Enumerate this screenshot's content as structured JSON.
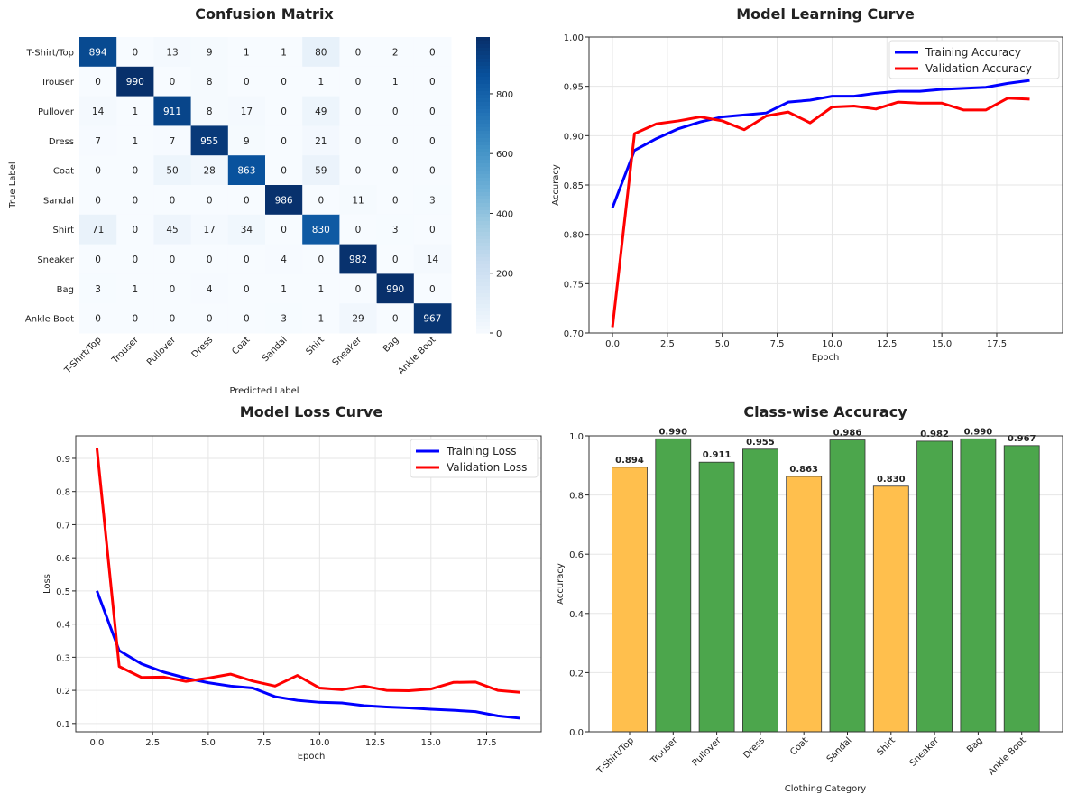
{
  "chart_data": [
    {
      "type": "heatmap",
      "title": "Confusion Matrix",
      "xlabel": "Predicted Label",
      "ylabel": "True Label",
      "labels": [
        "T-Shirt/Top",
        "Trouser",
        "Pullover",
        "Dress",
        "Coat",
        "Sandal",
        "Shirt",
        "Sneaker",
        "Bag",
        "Ankle Boot"
      ],
      "matrix": [
        [
          894,
          0,
          13,
          9,
          1,
          1,
          80,
          0,
          2,
          0
        ],
        [
          0,
          990,
          0,
          8,
          0,
          0,
          1,
          0,
          1,
          0
        ],
        [
          14,
          1,
          911,
          8,
          17,
          0,
          49,
          0,
          0,
          0
        ],
        [
          7,
          1,
          7,
          955,
          9,
          0,
          21,
          0,
          0,
          0
        ],
        [
          0,
          0,
          50,
          28,
          863,
          0,
          59,
          0,
          0,
          0
        ],
        [
          0,
          0,
          0,
          0,
          0,
          986,
          0,
          11,
          0,
          3
        ],
        [
          71,
          0,
          45,
          17,
          34,
          0,
          830,
          0,
          3,
          0
        ],
        [
          0,
          0,
          0,
          0,
          0,
          4,
          0,
          982,
          0,
          14
        ],
        [
          3,
          1,
          0,
          4,
          0,
          1,
          1,
          0,
          990,
          0
        ],
        [
          0,
          0,
          0,
          0,
          0,
          3,
          1,
          29,
          0,
          967
        ]
      ],
      "colormap": "Blues",
      "colorbar_ticks": [
        0,
        200,
        400,
        600,
        800
      ],
      "vmin": 0,
      "vmax": 990
    },
    {
      "type": "line",
      "title": "Model Learning Curve",
      "xlabel": "Epoch",
      "ylabel": "Accuracy",
      "x": [
        0,
        1,
        2,
        3,
        4,
        5,
        6,
        7,
        8,
        9,
        10,
        11,
        12,
        13,
        14,
        15,
        16,
        17,
        18,
        19
      ],
      "xlim": [
        -1.07,
        20.5
      ],
      "ylim": [
        0.7,
        1.0
      ],
      "xticks": [
        "0.0",
        "2.5",
        "5.0",
        "7.5",
        "10.0",
        "12.5",
        "15.0",
        "17.5"
      ],
      "yticks": [
        "0.70",
        "0.75",
        "0.80",
        "0.85",
        "0.90",
        "0.95",
        "1.00"
      ],
      "grid": true,
      "legend": "top-right",
      "series": [
        {
          "name": "Training Accuracy",
          "color": "#0000ff",
          "values": [
            0.827,
            0.885,
            0.897,
            0.907,
            0.914,
            0.919,
            0.921,
            0.923,
            0.934,
            0.936,
            0.94,
            0.94,
            0.943,
            0.945,
            0.945,
            0.947,
            0.948,
            0.949,
            0.953,
            0.956
          ]
        },
        {
          "name": "Validation Accuracy",
          "color": "#ff0000",
          "values": [
            0.706,
            0.902,
            0.912,
            0.915,
            0.919,
            0.915,
            0.906,
            0.92,
            0.924,
            0.913,
            0.929,
            0.93,
            0.927,
            0.934,
            0.933,
            0.933,
            0.926,
            0.926,
            0.938,
            0.937
          ]
        }
      ]
    },
    {
      "type": "line",
      "title": "Model Loss Curve",
      "xlabel": "Epoch",
      "ylabel": "Loss",
      "x": [
        0,
        1,
        2,
        3,
        4,
        5,
        6,
        7,
        8,
        9,
        10,
        11,
        12,
        13,
        14,
        15,
        16,
        17,
        18,
        19
      ],
      "xlim": [
        -0.95,
        19.95
      ],
      "ylim": [
        0.075,
        0.968
      ],
      "xticks": [
        "0.0",
        "2.5",
        "5.0",
        "7.5",
        "10.0",
        "12.5",
        "15.0",
        "17.5"
      ],
      "yticks": [
        "0.1",
        "0.2",
        "0.3",
        "0.4",
        "0.5",
        "0.6",
        "0.7",
        "0.8",
        "0.9"
      ],
      "grid": true,
      "legend": "top-right",
      "series": [
        {
          "name": "Training Loss",
          "color": "#0000ff",
          "values": [
            0.5,
            0.32,
            0.28,
            0.255,
            0.237,
            0.223,
            0.213,
            0.207,
            0.181,
            0.17,
            0.164,
            0.162,
            0.154,
            0.15,
            0.147,
            0.143,
            0.14,
            0.136,
            0.123,
            0.116
          ]
        },
        {
          "name": "Validation Loss",
          "color": "#ff0000",
          "values": [
            0.93,
            0.272,
            0.239,
            0.24,
            0.227,
            0.237,
            0.249,
            0.228,
            0.213,
            0.245,
            0.207,
            0.202,
            0.213,
            0.2,
            0.199,
            0.204,
            0.224,
            0.225,
            0.2,
            0.194
          ]
        }
      ]
    },
    {
      "type": "bar",
      "title": "Class-wise Accuracy",
      "xlabel": "Clothing Category",
      "ylabel": "Accuracy",
      "categories": [
        "T-Shirt/Top",
        "Trouser",
        "Pullover",
        "Dress",
        "Coat",
        "Sandal",
        "Shirt",
        "Sneaker",
        "Bag",
        "Ankle Boot"
      ],
      "values": [
        0.894,
        0.99,
        0.911,
        0.955,
        0.863,
        0.986,
        0.83,
        0.982,
        0.99,
        0.967
      ],
      "data_labels": [
        "0.894",
        "0.990",
        "0.911",
        "0.955",
        "0.863",
        "0.986",
        "0.830",
        "0.982",
        "0.990",
        "0.967"
      ],
      "ylim": [
        0,
        1.0
      ],
      "yticks": [
        "0.0",
        "0.2",
        "0.4",
        "0.6",
        "0.8",
        "1.0"
      ],
      "colors": {
        "high": "#4ca64c",
        "low": "#ffbf4d"
      },
      "grid": true
    }
  ]
}
